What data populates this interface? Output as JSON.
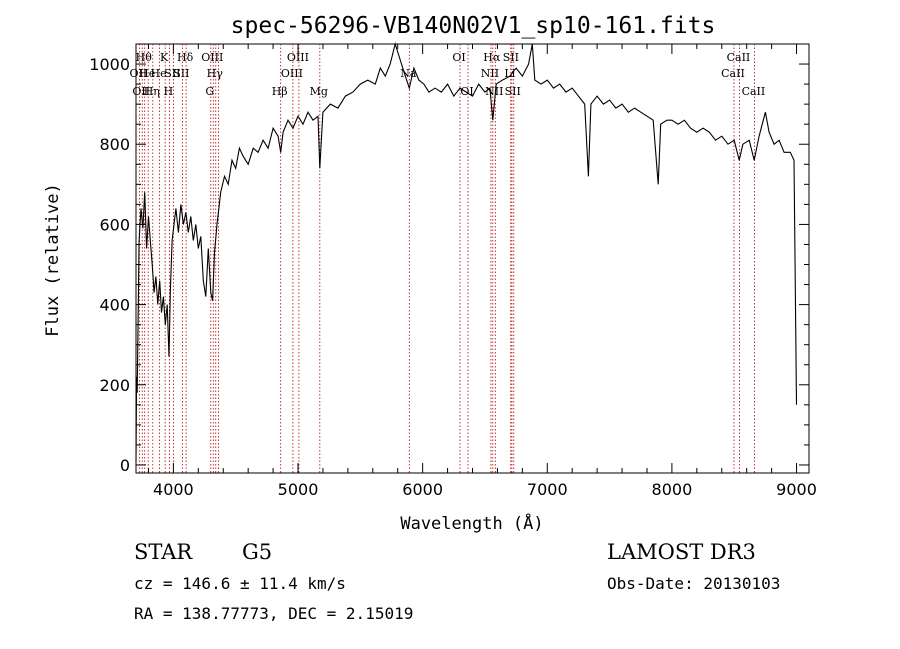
{
  "chart_data": {
    "type": "line",
    "title": "spec-56296-VB140N02V1_sp10-161.fits",
    "xlabel": "Wavelength (Å)",
    "ylabel": "Flux (relative)",
    "xlim": [
      3700,
      9100
    ],
    "ylim": [
      -20,
      1050
    ],
    "xticks": [
      4000,
      5000,
      6000,
      7000,
      8000,
      9000
    ],
    "yticks": [
      0,
      200,
      400,
      600,
      800,
      1000
    ],
    "grid": false,
    "series": [
      {
        "color": "#000000",
        "points": [
          [
            3700,
            10
          ],
          [
            3705,
            220
          ],
          [
            3710,
            180
          ],
          [
            3725,
            560
          ],
          [
            3740,
            640
          ],
          [
            3755,
            590
          ],
          [
            3770,
            680
          ],
          [
            3785,
            540
          ],
          [
            3800,
            620
          ],
          [
            3815,
            560
          ],
          [
            3830,
            500
          ],
          [
            3845,
            430
          ],
          [
            3860,
            470
          ],
          [
            3875,
            400
          ],
          [
            3890,
            460
          ],
          [
            3905,
            380
          ],
          [
            3920,
            420
          ],
          [
            3935,
            350
          ],
          [
            3950,
            400
          ],
          [
            3965,
            270
          ],
          [
            3975,
            430
          ],
          [
            3990,
            560
          ],
          [
            4005,
            600
          ],
          [
            4020,
            640
          ],
          [
            4040,
            580
          ],
          [
            4060,
            650
          ],
          [
            4080,
            600
          ],
          [
            4100,
            630
          ],
          [
            4120,
            580
          ],
          [
            4140,
            620
          ],
          [
            4160,
            560
          ],
          [
            4180,
            600
          ],
          [
            4200,
            540
          ],
          [
            4220,
            570
          ],
          [
            4240,
            460
          ],
          [
            4260,
            420
          ],
          [
            4280,
            540
          ],
          [
            4300,
            430
          ],
          [
            4315,
            410
          ],
          [
            4330,
            530
          ],
          [
            4350,
            600
          ],
          [
            4380,
            680
          ],
          [
            4410,
            720
          ],
          [
            4440,
            700
          ],
          [
            4470,
            760
          ],
          [
            4500,
            740
          ],
          [
            4530,
            790
          ],
          [
            4560,
            770
          ],
          [
            4600,
            750
          ],
          [
            4640,
            790
          ],
          [
            4680,
            780
          ],
          [
            4720,
            810
          ],
          [
            4760,
            790
          ],
          [
            4800,
            840
          ],
          [
            4840,
            820
          ],
          [
            4861,
            780
          ],
          [
            4880,
            830
          ],
          [
            4920,
            860
          ],
          [
            4960,
            840
          ],
          [
            5000,
            870
          ],
          [
            5040,
            850
          ],
          [
            5080,
            880
          ],
          [
            5120,
            860
          ],
          [
            5160,
            870
          ],
          [
            5175,
            740
          ],
          [
            5200,
            880
          ],
          [
            5260,
            900
          ],
          [
            5320,
            890
          ],
          [
            5380,
            920
          ],
          [
            5440,
            930
          ],
          [
            5500,
            950
          ],
          [
            5560,
            960
          ],
          [
            5620,
            950
          ],
          [
            5660,
            990
          ],
          [
            5700,
            970
          ],
          [
            5740,
            1000
          ],
          [
            5780,
            1050
          ],
          [
            5810,
            1020
          ],
          [
            5850,
            980
          ],
          [
            5893,
            940
          ],
          [
            5930,
            990
          ],
          [
            5970,
            960
          ],
          [
            6010,
            950
          ],
          [
            6050,
            930
          ],
          [
            6100,
            940
          ],
          [
            6150,
            930
          ],
          [
            6200,
            950
          ],
          [
            6250,
            920
          ],
          [
            6300,
            940
          ],
          [
            6350,
            930
          ],
          [
            6400,
            920
          ],
          [
            6450,
            950
          ],
          [
            6500,
            930
          ],
          [
            6540,
            940
          ],
          [
            6563,
            860
          ],
          [
            6590,
            950
          ],
          [
            6640,
            960
          ],
          [
            6700,
            970
          ],
          [
            6750,
            990
          ],
          [
            6800,
            970
          ],
          [
            6850,
            1000
          ],
          [
            6880,
            1050
          ],
          [
            6900,
            960
          ],
          [
            6950,
            950
          ],
          [
            7000,
            960
          ],
          [
            7050,
            940
          ],
          [
            7100,
            950
          ],
          [
            7150,
            930
          ],
          [
            7200,
            940
          ],
          [
            7250,
            920
          ],
          [
            7300,
            900
          ],
          [
            7330,
            720
          ],
          [
            7350,
            900
          ],
          [
            7400,
            920
          ],
          [
            7450,
            900
          ],
          [
            7500,
            910
          ],
          [
            7550,
            890
          ],
          [
            7600,
            900
          ],
          [
            7650,
            880
          ],
          [
            7700,
            890
          ],
          [
            7750,
            880
          ],
          [
            7800,
            870
          ],
          [
            7850,
            860
          ],
          [
            7890,
            700
          ],
          [
            7910,
            850
          ],
          [
            7960,
            860
          ],
          [
            8000,
            860
          ],
          [
            8050,
            850
          ],
          [
            8100,
            860
          ],
          [
            8150,
            840
          ],
          [
            8200,
            830
          ],
          [
            8250,
            840
          ],
          [
            8300,
            830
          ],
          [
            8350,
            810
          ],
          [
            8400,
            820
          ],
          [
            8450,
            800
          ],
          [
            8500,
            810
          ],
          [
            8540,
            760
          ],
          [
            8570,
            800
          ],
          [
            8620,
            810
          ],
          [
            8660,
            760
          ],
          [
            8700,
            820
          ],
          [
            8750,
            880
          ],
          [
            8780,
            830
          ],
          [
            8820,
            800
          ],
          [
            8860,
            810
          ],
          [
            8900,
            780
          ],
          [
            8950,
            780
          ],
          [
            8980,
            760
          ],
          [
            9000,
            150
          ]
        ]
      }
    ],
    "lines": [
      {
        "x": 3727,
        "label": "OII",
        "row": 1
      },
      {
        "x": 3750,
        "label": "OII",
        "row": 2
      },
      {
        "x": 3770,
        "label": "Hθ",
        "row": 0
      },
      {
        "x": 3798,
        "label": "He",
        "row": 1
      },
      {
        "x": 3835,
        "label": "Hη",
        "row": 2
      },
      {
        "x": 3889,
        "label": "He",
        "row": 1
      },
      {
        "x": 3934,
        "label": "K",
        "row": 0
      },
      {
        "x": 3968,
        "label": "H",
        "row": 2
      },
      {
        "x": 4000,
        "label": "SII",
        "row": 1
      },
      {
        "x": 4072,
        "label": "SII",
        "row": 1
      },
      {
        "x": 4102,
        "label": "Hδ",
        "row": 0
      },
      {
        "x": 4300,
        "label": "G",
        "row": 2
      },
      {
        "x": 4320,
        "label": "OIII",
        "row": 0
      },
      {
        "x": 4340,
        "label": "Hγ",
        "row": 1
      },
      {
        "x": 4363,
        "label": "",
        "row": 0
      },
      {
        "x": 4861,
        "label": "Hβ",
        "row": 2
      },
      {
        "x": 4959,
        "label": "OIII",
        "row": 1
      },
      {
        "x": 5007,
        "label": "OIII",
        "row": 0
      },
      {
        "x": 5175,
        "label": "Mg",
        "row": 2
      },
      {
        "x": 5893,
        "label": "Na",
        "row": 1
      },
      {
        "x": 6300,
        "label": "OI",
        "row": 0
      },
      {
        "x": 6364,
        "label": "OI",
        "row": 2
      },
      {
        "x": 6548,
        "label": "NII",
        "row": 1
      },
      {
        "x": 6563,
        "label": "Hα",
        "row": 0
      },
      {
        "x": 6583,
        "label": "NII",
        "row": 2
      },
      {
        "x": 6707,
        "label": "Li",
        "row": 1
      },
      {
        "x": 6716,
        "label": "SII",
        "row": 0
      },
      {
        "x": 6731,
        "label": "SII",
        "row": 2
      },
      {
        "x": 8498,
        "label": "CaII",
        "row": 1
      },
      {
        "x": 8542,
        "label": "CaII",
        "row": 0
      },
      {
        "x": 8662,
        "label": "CaII",
        "row": 2
      }
    ]
  },
  "info": {
    "class": "STAR",
    "subclass": "G5",
    "survey": "LAMOST DR3",
    "cz": "cz = 146.6 ± 11.4 km/s",
    "obs_date": "Obs-Date: 20130103",
    "radec": "RA = 138.77773, DEC =   2.15019"
  }
}
